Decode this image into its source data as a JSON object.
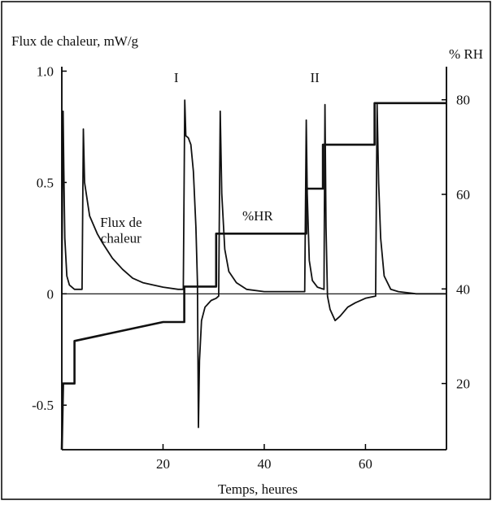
{
  "chart_data": {
    "type": "line",
    "left_axis_title": "Flux de chaleur, mW/g",
    "right_axis_title": "% RH",
    "xlabel": "Temps, heures",
    "xlim": [
      0,
      76
    ],
    "ylim_left": [
      -0.7,
      1.02
    ],
    "ylim_right": [
      6,
      87
    ],
    "x_ticks": [
      "20",
      "40",
      "60"
    ],
    "left_ticks": [
      "1.0",
      "0.5",
      "0",
      "-0.5"
    ],
    "right_ticks": [
      "80",
      "60",
      "40",
      "20"
    ],
    "annotations": [
      {
        "text": "Flux de",
        "x": 11.7,
        "y": 0.3
      },
      {
        "text": "chaleur",
        "x": 11.7,
        "y": 0.23
      },
      {
        "text": "%HR",
        "x": 38.7,
        "y": 0.33
      },
      {
        "text": "I",
        "x": 22.6,
        "y": 0.95
      },
      {
        "text": "II",
        "x": 50.0,
        "y": 0.95
      }
    ],
    "series": [
      {
        "name": "Flux de chaleur",
        "axis": "left",
        "points": [
          [
            0,
            0
          ],
          [
            0.25,
            0.82
          ],
          [
            0.4,
            0.55
          ],
          [
            0.6,
            0.25
          ],
          [
            1.0,
            0.08
          ],
          [
            1.5,
            0.04
          ],
          [
            2.5,
            0.02
          ],
          [
            3.5,
            0.02
          ],
          [
            4.0,
            0.02
          ],
          [
            4.25,
            0.74
          ],
          [
            4.5,
            0.5
          ],
          [
            5.5,
            0.35
          ],
          [
            7,
            0.27
          ],
          [
            8,
            0.23
          ],
          [
            10,
            0.16
          ],
          [
            12,
            0.11
          ],
          [
            14,
            0.07
          ],
          [
            16,
            0.05
          ],
          [
            18,
            0.04
          ],
          [
            20,
            0.03
          ],
          [
            23,
            0.02
          ],
          [
            24,
            0.02
          ],
          [
            24.3,
            0.87
          ],
          [
            24.5,
            0.71
          ],
          [
            25,
            0.7
          ],
          [
            25.5,
            0.67
          ],
          [
            26,
            0.55
          ],
          [
            26.5,
            0.3
          ],
          [
            26.8,
            0.05
          ],
          [
            27.0,
            -0.6
          ],
          [
            27.2,
            -0.3
          ],
          [
            27.6,
            -0.12
          ],
          [
            28.3,
            -0.06
          ],
          [
            29.5,
            -0.03
          ],
          [
            30.5,
            -0.02
          ],
          [
            31,
            -0.01
          ],
          [
            31.3,
            0.82
          ],
          [
            31.6,
            0.45
          ],
          [
            32.2,
            0.2
          ],
          [
            33,
            0.1
          ],
          [
            34.5,
            0.05
          ],
          [
            36.5,
            0.02
          ],
          [
            40,
            0.01
          ],
          [
            44,
            0.01
          ],
          [
            48,
            0.01
          ],
          [
            48.3,
            0.78
          ],
          [
            48.5,
            0.45
          ],
          [
            48.9,
            0.15
          ],
          [
            49.5,
            0.06
          ],
          [
            50.5,
            0.03
          ],
          [
            51.8,
            0.02
          ],
          [
            52.0,
            0.85
          ],
          [
            52.2,
            0.3
          ],
          [
            52.5,
            -0.01
          ],
          [
            53,
            -0.07
          ],
          [
            54,
            -0.12
          ],
          [
            55,
            -0.1
          ],
          [
            56.5,
            -0.06
          ],
          [
            58,
            -0.04
          ],
          [
            60,
            -0.02
          ],
          [
            62,
            -0.01
          ],
          [
            62.3,
            0.85
          ],
          [
            62.6,
            0.5
          ],
          [
            63,
            0.25
          ],
          [
            63.7,
            0.08
          ],
          [
            65,
            0.02
          ],
          [
            66.5,
            0.01
          ],
          [
            70,
            0.0
          ],
          [
            76,
            0.0
          ]
        ]
      },
      {
        "name": "%HR",
        "axis": "right",
        "points": [
          [
            0,
            6
          ],
          [
            0.25,
            20
          ],
          [
            2.5,
            20
          ],
          [
            2.5,
            29
          ],
          [
            20,
            33
          ],
          [
            24.2,
            33
          ],
          [
            24.2,
            40.5
          ],
          [
            30.5,
            40.5
          ],
          [
            30.5,
            51.7
          ],
          [
            48.3,
            51.7
          ],
          [
            48.3,
            61.2
          ],
          [
            51.6,
            61.2
          ],
          [
            51.6,
            70.5
          ],
          [
            61.8,
            70.5
          ],
          [
            61.8,
            79.3
          ],
          [
            76,
            79.3
          ]
        ]
      }
    ],
    "zero_line": true,
    "grid": false,
    "legend": "none"
  }
}
